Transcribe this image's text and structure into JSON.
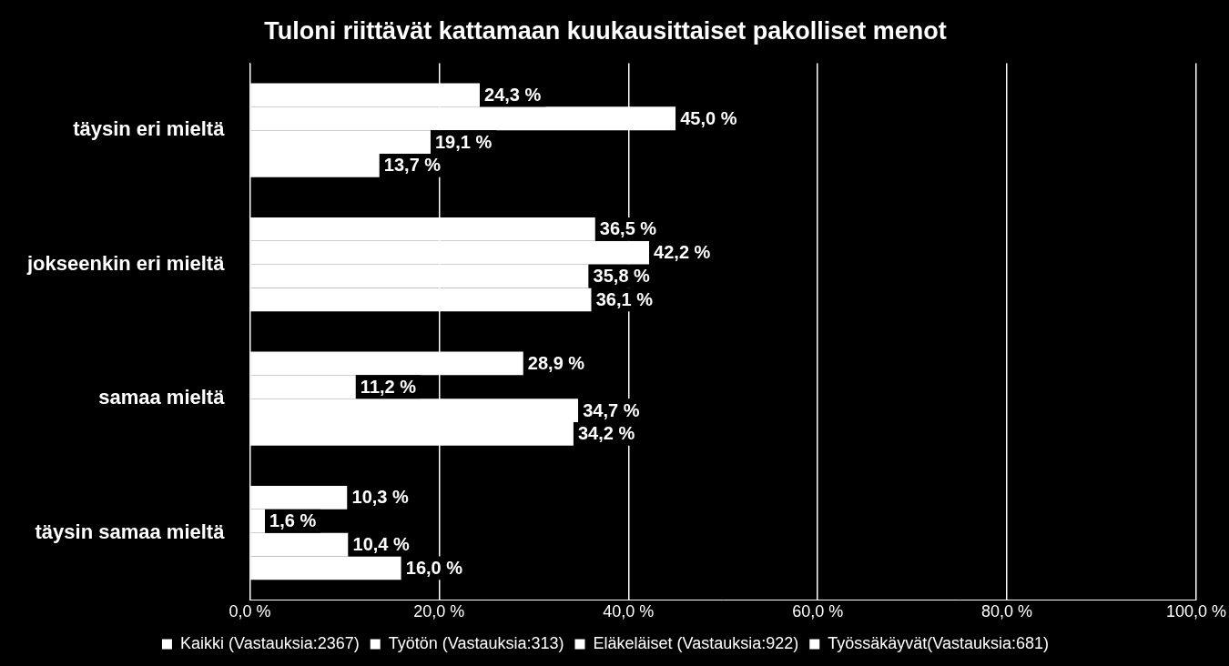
{
  "chart_data": {
    "type": "bar",
    "orientation": "horizontal",
    "title": "Tuloni riittävät kattamaan kuukausittaiset pakolliset menot",
    "categories": [
      "täysin eri mieltä",
      "jokseenkin eri mieltä",
      "samaa mieltä",
      "täysin samaa mieltä"
    ],
    "series": [
      {
        "name": "Kaikki (Vastauksia:2367)",
        "color": "#ffffff",
        "values": [
          24.3,
          36.5,
          28.9,
          10.3
        ],
        "value_labels": [
          "24,3 %",
          "36,5 %",
          "28,9 %",
          "10,3 %"
        ]
      },
      {
        "name": "Työtön (Vastauksia:313)",
        "color": "#ffffff",
        "values": [
          45.0,
          42.2,
          11.2,
          1.6
        ],
        "value_labels": [
          "45,0 %",
          "42,2 %",
          "11,2 %",
          "1,6 %"
        ]
      },
      {
        "name": "Eläkeläiset (Vastauksia:922)",
        "color": "#ffffff",
        "values": [
          19.1,
          35.8,
          34.7,
          10.4
        ],
        "value_labels": [
          "19,1 %",
          "35,8 %",
          "34,7 %",
          "10,4 %"
        ]
      },
      {
        "name": "Työssäkäyvät(Vastauksia:681)",
        "color": "#ffffff",
        "values": [
          13.7,
          36.1,
          34.2,
          16.0
        ],
        "value_labels": [
          "13,7 %",
          "36,1 %",
          "34,2 %",
          "16,0 %"
        ]
      }
    ],
    "xlim": [
      0,
      100
    ],
    "xticks": [
      {
        "value": 0,
        "label": "0,0 %"
      },
      {
        "value": 20,
        "label": "20,0 %"
      },
      {
        "value": 40,
        "label": "40,0 %"
      },
      {
        "value": 60,
        "label": "60,0 %"
      },
      {
        "value": 80,
        "label": "80,0 %"
      },
      {
        "value": 100,
        "label": "100,0 %"
      }
    ],
    "grid": true,
    "legend": "bottom",
    "data_labels": true
  }
}
